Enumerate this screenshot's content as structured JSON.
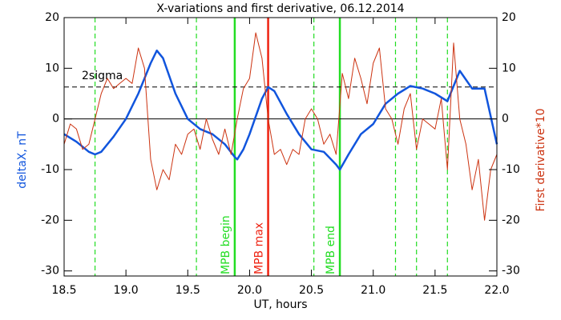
{
  "chart_data": {
    "type": "line",
    "title": "X-variations and first derivative, 06.12.2014",
    "xlabel": "UT, hours",
    "ylabel": "deltaX, nT",
    "y2label": "First derivative*10",
    "xlim": [
      18.5,
      22.0
    ],
    "xticks": [
      18.5,
      {
        "value": 19,
        "label": "19.0"
      },
      19.5,
      {
        "value": 20,
        "label": "20.0"
      },
      20.5,
      {
        "value": 21,
        "label": "21.0"
      },
      21.5,
      {
        "value": 22,
        "label": "22.0"
      }
    ],
    "ylim": [
      -31,
      20
    ],
    "yticks": [
      20,
      10,
      0,
      -10,
      -20,
      -30
    ],
    "y2lim": [
      -31,
      20
    ],
    "y2ticks": [
      20,
      10,
      0,
      -10,
      -20,
      -30
    ],
    "series": [
      {
        "name": "deltaX, nT",
        "color": "#1155dd",
        "axis": "y",
        "x": [
          18.5,
          18.6,
          18.7,
          18.75,
          18.8,
          18.9,
          19.0,
          19.1,
          19.2,
          19.25,
          19.3,
          19.4,
          19.5,
          19.6,
          19.7,
          19.8,
          19.88,
          19.9,
          19.95,
          20.0,
          20.1,
          20.15,
          20.2,
          20.3,
          20.4,
          20.5,
          20.6,
          20.7,
          20.73,
          20.8,
          20.9,
          21.0,
          21.1,
          21.2,
          21.3,
          21.4,
          21.5,
          21.6,
          21.7,
          21.8,
          21.9,
          22.0
        ],
        "values": [
          -3,
          -4.5,
          -6.5,
          -7,
          -6.5,
          -3.5,
          0,
          5,
          11,
          13.5,
          12,
          5,
          0,
          -2,
          -3,
          -5,
          -7.5,
          -8,
          -6,
          -3,
          4,
          6.3,
          5.5,
          1,
          -3,
          -6,
          -6.5,
          -9,
          -10,
          -7,
          -3,
          -1,
          3,
          5,
          6.5,
          6,
          5,
          3.5,
          9.5,
          6,
          6,
          -5
        ]
      },
      {
        "name": "First derivative*10",
        "color": "#cc3311",
        "axis": "y2",
        "x": [
          18.5,
          18.55,
          18.6,
          18.65,
          18.7,
          18.75,
          18.8,
          18.85,
          18.9,
          18.95,
          19.0,
          19.05,
          19.1,
          19.15,
          19.2,
          19.25,
          19.3,
          19.35,
          19.4,
          19.45,
          19.5,
          19.55,
          19.6,
          19.65,
          19.7,
          19.75,
          19.8,
          19.85,
          19.9,
          19.95,
          20.0,
          20.05,
          20.1,
          20.15,
          20.2,
          20.25,
          20.3,
          20.35,
          20.4,
          20.45,
          20.5,
          20.55,
          20.6,
          20.65,
          20.7,
          20.75,
          20.8,
          20.85,
          20.9,
          20.95,
          21.0,
          21.05,
          21.1,
          21.15,
          21.2,
          21.25,
          21.3,
          21.35,
          21.4,
          21.45,
          21.5,
          21.55,
          21.6,
          21.65,
          21.7,
          21.75,
          21.8,
          21.85,
          21.9,
          21.95,
          22.0
        ],
        "values": [
          -5,
          -1,
          -2,
          -6,
          -5,
          0,
          5,
          8,
          6,
          7,
          8,
          7,
          14,
          10,
          -8,
          -14,
          -10,
          -12,
          -5,
          -7,
          -3,
          -2,
          -6,
          0,
          -4,
          -7,
          -2,
          -7,
          0,
          6,
          8,
          17,
          12,
          0,
          -7,
          -6,
          -9,
          -6,
          -7,
          0,
          2,
          0,
          -5,
          -3,
          -7,
          9,
          4,
          12,
          8,
          3,
          11,
          14,
          2,
          0,
          -5,
          2,
          5,
          -6,
          0,
          -1,
          -2,
          4,
          -10,
          15,
          0,
          -5,
          -14,
          -8,
          -20,
          -10,
          -7
        ]
      }
    ],
    "hlines": [
      {
        "y": 6.3,
        "style": "dashed",
        "color": "#000000",
        "label": "2sigma"
      },
      {
        "y": 0,
        "style": "solid",
        "color": "#000000"
      }
    ],
    "vlines": [
      {
        "x": 18.75,
        "style": "dashed",
        "color": "#22dd22"
      },
      {
        "x": 19.57,
        "style": "dashed",
        "color": "#22dd22"
      },
      {
        "x": 19.88,
        "style": "solid",
        "color": "#22dd22",
        "label": "MPB begin"
      },
      {
        "x": 20.15,
        "style": "solid",
        "color": "#ee2211",
        "label": "MPB max"
      },
      {
        "x": 20.52,
        "style": "dashed",
        "color": "#22dd22"
      },
      {
        "x": 20.73,
        "style": "solid",
        "color": "#22dd22",
        "label": "MPB end"
      },
      {
        "x": 21.18,
        "style": "dashed",
        "color": "#22dd22"
      },
      {
        "x": 21.35,
        "style": "dashed",
        "color": "#22dd22"
      },
      {
        "x": 21.6,
        "style": "dashed",
        "color": "#22dd22"
      }
    ]
  }
}
